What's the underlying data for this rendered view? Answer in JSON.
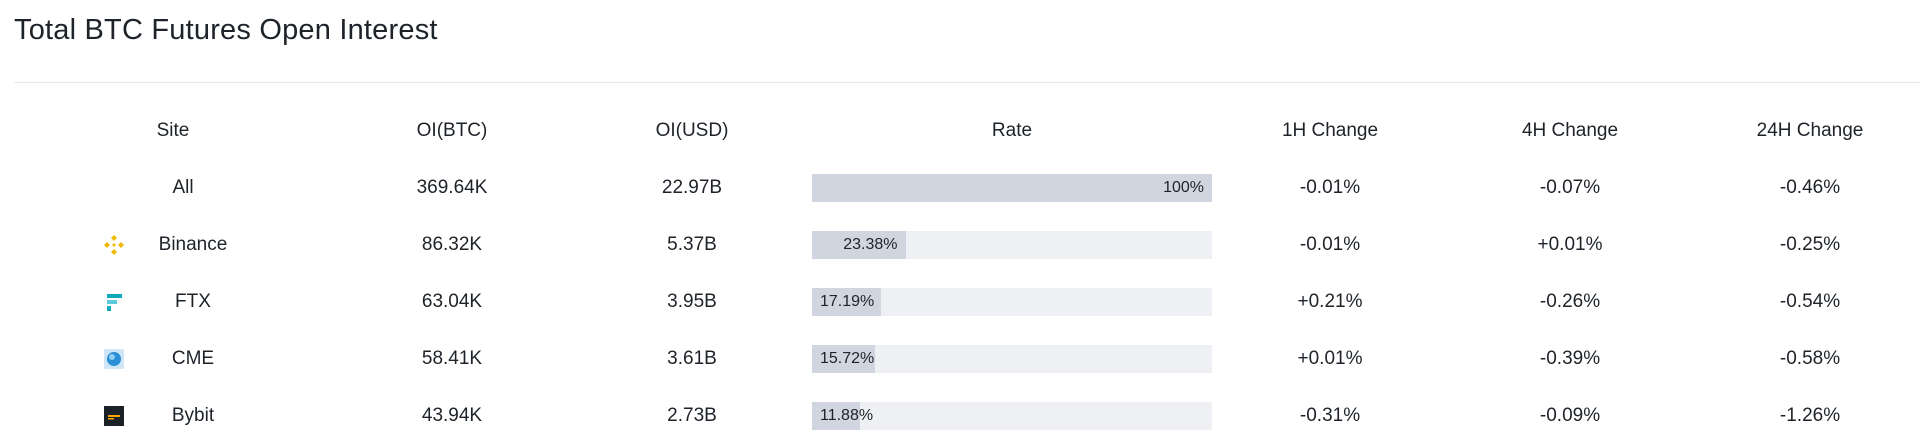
{
  "title": "Total BTC Futures Open Interest",
  "columns": {
    "site": "Site",
    "oi_btc": "OI(BTC)",
    "oi_usd": "OI(USD)",
    "rate": "Rate",
    "change_1h": "1H Change",
    "change_4h": "4H Change",
    "change_24h": "24H Change"
  },
  "rows": [
    {
      "site": "All",
      "icon": "none",
      "oi_btc": "369.64K",
      "oi_usd": "22.97B",
      "rate_label": "100%",
      "rate_value": 100,
      "change_1h": "-0.01%",
      "change_4h": "-0.07%",
      "change_24h": "-0.46%"
    },
    {
      "site": "Binance",
      "icon": "binance-logo-icon",
      "oi_btc": "86.32K",
      "oi_usd": "5.37B",
      "rate_label": "23.38%",
      "rate_value": 23.38,
      "change_1h": "-0.01%",
      "change_4h": "+0.01%",
      "change_24h": "-0.25%"
    },
    {
      "site": "FTX",
      "icon": "ftx-logo-icon",
      "oi_btc": "63.04K",
      "oi_usd": "3.95B",
      "rate_label": "17.19%",
      "rate_value": 17.19,
      "change_1h": "+0.21%",
      "change_4h": "-0.26%",
      "change_24h": "-0.54%"
    },
    {
      "site": "CME",
      "icon": "cme-logo-icon",
      "oi_btc": "58.41K",
      "oi_usd": "3.61B",
      "rate_label": "15.72%",
      "rate_value": 15.72,
      "change_1h": "+0.01%",
      "change_4h": "-0.39%",
      "change_24h": "-0.58%"
    },
    {
      "site": "Bybit",
      "icon": "bybit-logo-icon",
      "oi_btc": "43.94K",
      "oi_usd": "2.73B",
      "rate_label": "11.88%",
      "rate_value": 11.88,
      "change_1h": "-0.31%",
      "change_4h": "-0.09%",
      "change_24h": "-1.26%"
    }
  ],
  "colors": {
    "text": "#1e2329",
    "bar_fill": "#d0d5e0",
    "bar_track": "#eef0f3",
    "binance": "#f0b90b",
    "ftx": "#11a9bc",
    "cme": "#2a8fd6",
    "bybit": "#1c2027"
  }
}
